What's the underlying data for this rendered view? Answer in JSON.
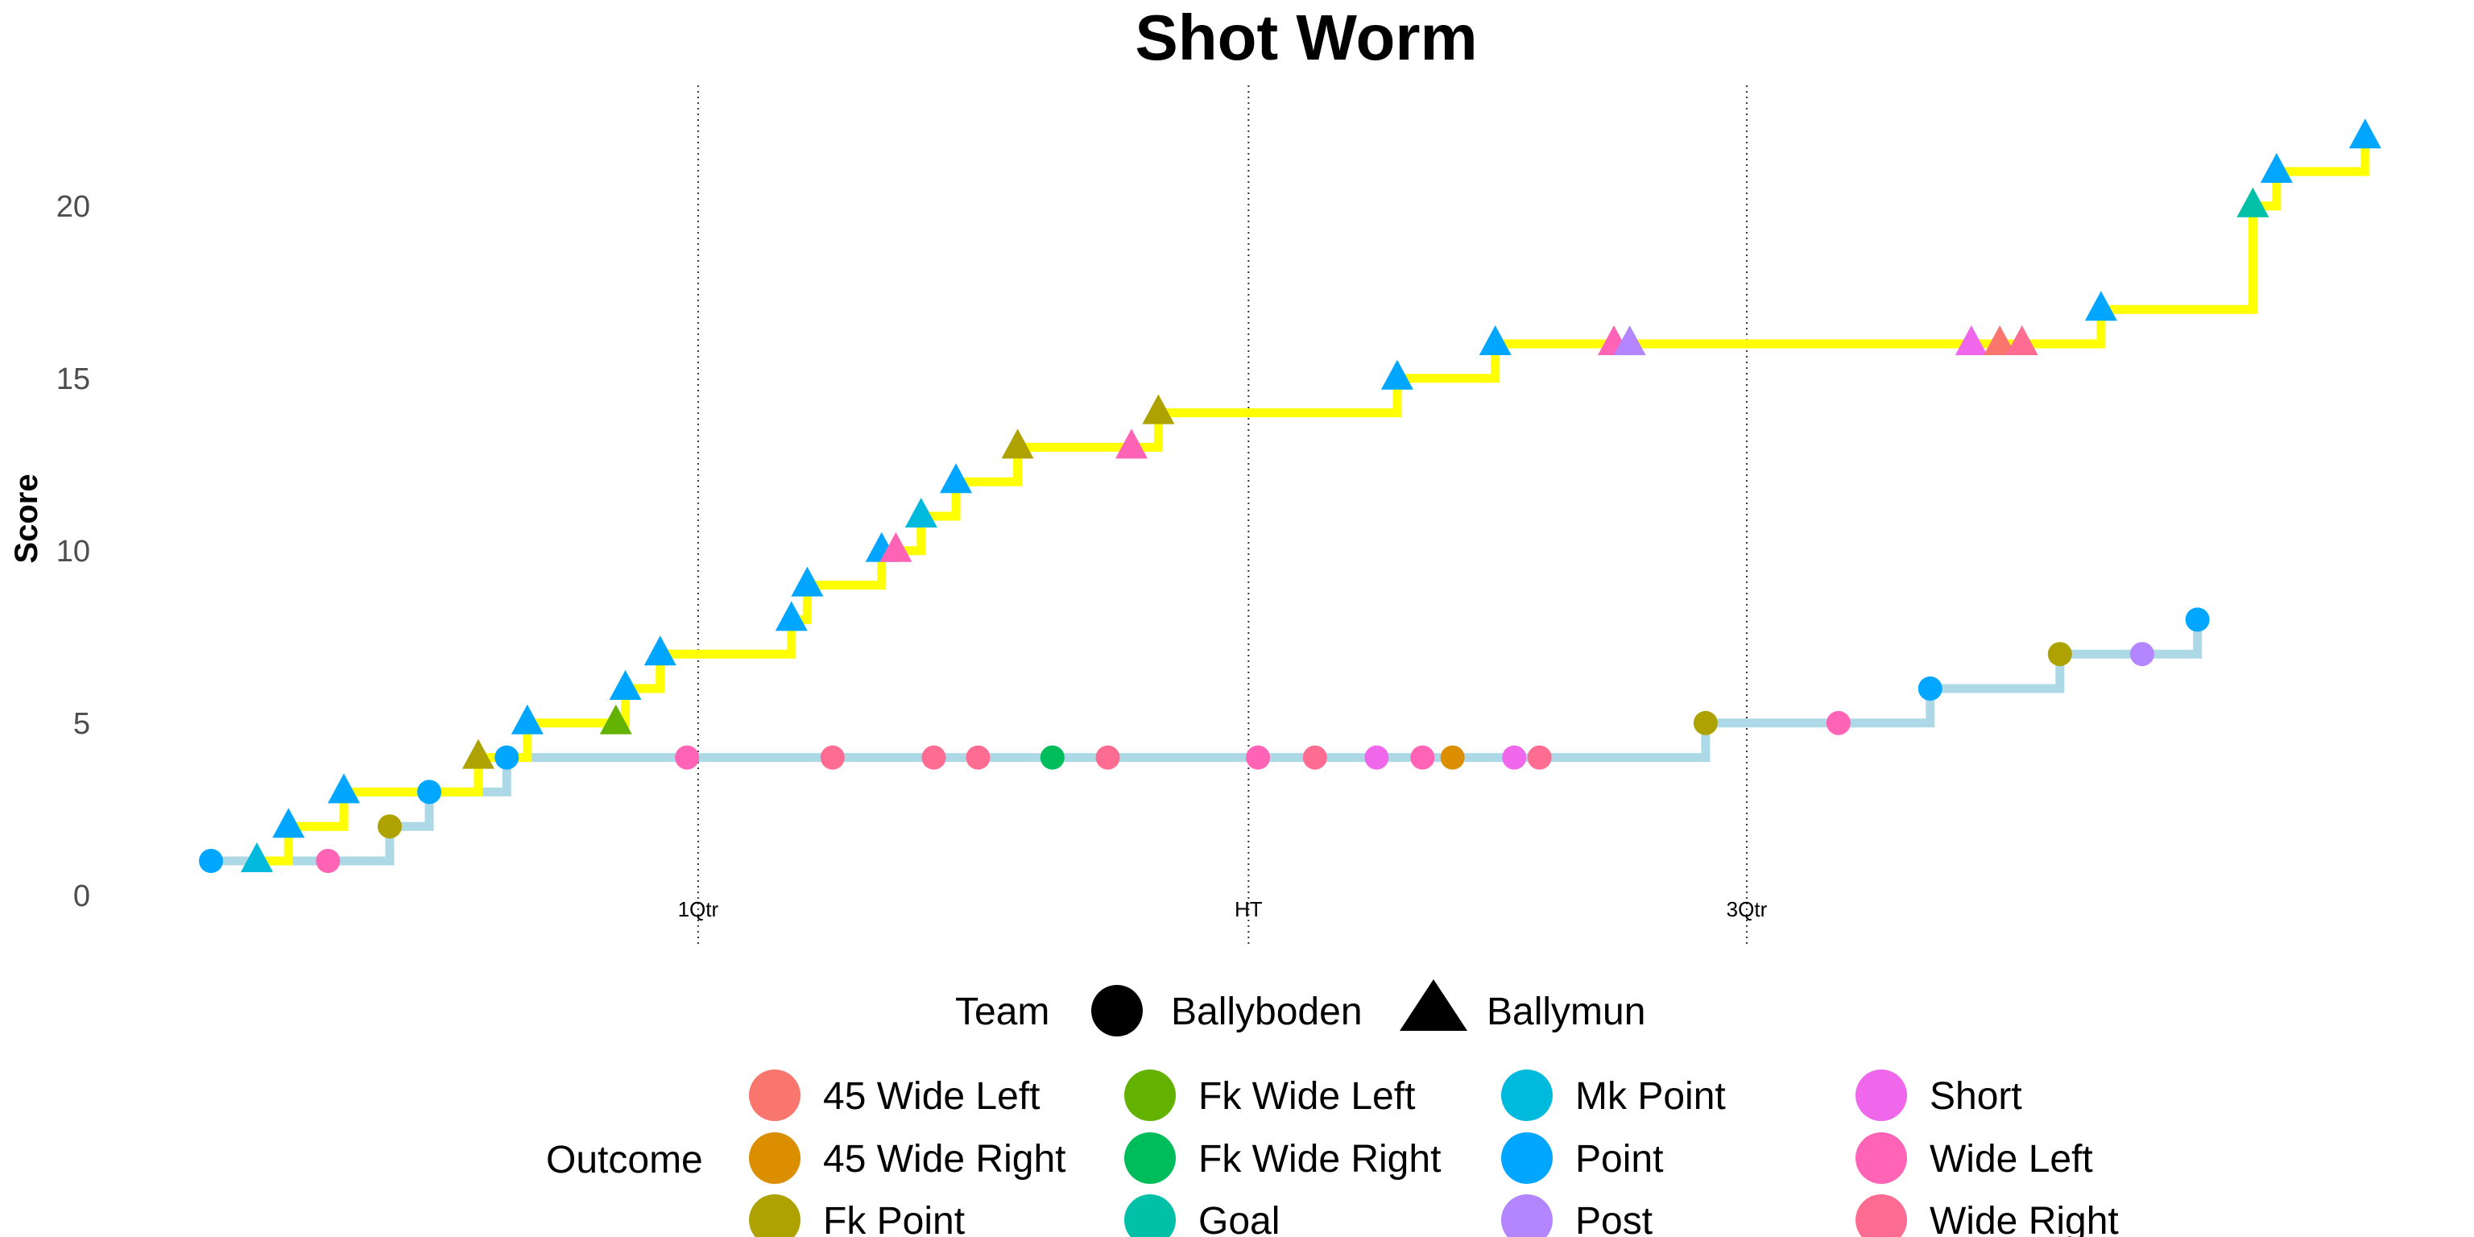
{
  "chart_data": {
    "type": "line",
    "title": "Shot Worm",
    "xlabel": "",
    "ylabel": "Score",
    "xlim": [
      0,
      1385
    ],
    "ylim": [
      -1.5,
      23.5
    ],
    "y_ticks": [
      0,
      5,
      10,
      15,
      20
    ],
    "grid": false,
    "time_markers": [
      {
        "label": "1Qtr",
        "x": 308
      },
      {
        "label": "HT",
        "x": 656
      },
      {
        "label": "3Qtr",
        "x": 971
      }
    ],
    "team_legend_title": "Team",
    "teams": [
      {
        "name": "Ballyboden",
        "shape": "circle",
        "line_color": "#ADD8E6"
      },
      {
        "name": "Ballymun",
        "shape": "triangle",
        "line_color": "#FFFF00"
      }
    ],
    "outcome_legend_title": "Outcome",
    "outcomes": [
      {
        "name": "45 Wide Left",
        "color": "#F8766D"
      },
      {
        "name": "45 Wide Right",
        "color": "#DB8E00"
      },
      {
        "name": "Fk Point",
        "color": "#AEA200"
      },
      {
        "name": "Fk Wide Left",
        "color": "#64B200"
      },
      {
        "name": "Fk Wide Right",
        "color": "#00BD5C"
      },
      {
        "name": "Goal",
        "color": "#00C1A7"
      },
      {
        "name": "Mk Point",
        "color": "#00BADE"
      },
      {
        "name": "Point",
        "color": "#00A6FF"
      },
      {
        "name": "Post",
        "color": "#B385FF"
      },
      {
        "name": "Short",
        "color": "#EF67EB"
      },
      {
        "name": "Wide Left",
        "color": "#FF63B6"
      },
      {
        "name": "Wide Right",
        "color": "#FF6C91"
      }
    ],
    "series": [
      {
        "name": "Ballyboden",
        "points": [
          {
            "x": 0,
            "y": 1,
            "outcome": "Point"
          },
          {
            "x": 74,
            "y": 1,
            "outcome": "Wide Left"
          },
          {
            "x": 113,
            "y": 2,
            "outcome": "Fk Point"
          },
          {
            "x": 138,
            "y": 3,
            "outcome": "Point"
          },
          {
            "x": 187,
            "y": 4,
            "outcome": "Point"
          },
          {
            "x": 301,
            "y": 4,
            "outcome": "Wide Left"
          },
          {
            "x": 393,
            "y": 4,
            "outcome": "Wide Right"
          },
          {
            "x": 457,
            "y": 4,
            "outcome": "Wide Right"
          },
          {
            "x": 485,
            "y": 4,
            "outcome": "Wide Right"
          },
          {
            "x": 532,
            "y": 4,
            "outcome": "Fk Wide Right"
          },
          {
            "x": 567,
            "y": 4,
            "outcome": "Wide Right"
          },
          {
            "x": 662,
            "y": 4,
            "outcome": "Wide Left"
          },
          {
            "x": 698,
            "y": 4,
            "outcome": "Wide Right"
          },
          {
            "x": 737,
            "y": 4,
            "outcome": "Short"
          },
          {
            "x": 766,
            "y": 4,
            "outcome": "Wide Left"
          },
          {
            "x": 785,
            "y": 4,
            "outcome": "45 Wide Right"
          },
          {
            "x": 824,
            "y": 4,
            "outcome": "Short"
          },
          {
            "x": 840,
            "y": 4,
            "outcome": "Wide Right"
          },
          {
            "x": 945,
            "y": 5,
            "outcome": "Fk Point"
          },
          {
            "x": 1029,
            "y": 5,
            "outcome": "Wide Left"
          },
          {
            "x": 1087,
            "y": 6,
            "outcome": "Point"
          },
          {
            "x": 1169,
            "y": 7,
            "outcome": "Fk Point"
          },
          {
            "x": 1221,
            "y": 7,
            "outcome": "Post"
          },
          {
            "x": 1256,
            "y": 8,
            "outcome": "Point"
          }
        ]
      },
      {
        "name": "Ballymun",
        "points": [
          {
            "x": 29,
            "y": 1,
            "outcome": "Mk Point"
          },
          {
            "x": 49,
            "y": 2,
            "outcome": "Point"
          },
          {
            "x": 84,
            "y": 3,
            "outcome": "Point"
          },
          {
            "x": 169,
            "y": 4,
            "outcome": "Fk Point"
          },
          {
            "x": 200,
            "y": 5,
            "outcome": "Point"
          },
          {
            "x": 256,
            "y": 5,
            "outcome": "Fk Wide Left"
          },
          {
            "x": 262,
            "y": 6,
            "outcome": "Point"
          },
          {
            "x": 284,
            "y": 7,
            "outcome": "Point"
          },
          {
            "x": 367,
            "y": 8,
            "outcome": "Point"
          },
          {
            "x": 377,
            "y": 9,
            "outcome": "Point"
          },
          {
            "x": 424,
            "y": 10,
            "outcome": "Point"
          },
          {
            "x": 433,
            "y": 10,
            "outcome": "Wide Left"
          },
          {
            "x": 449,
            "y": 11,
            "outcome": "Mk Point"
          },
          {
            "x": 471,
            "y": 12,
            "outcome": "Point"
          },
          {
            "x": 510,
            "y": 13,
            "outcome": "Fk Point"
          },
          {
            "x": 582,
            "y": 13,
            "outcome": "Wide Left"
          },
          {
            "x": 599,
            "y": 14,
            "outcome": "Fk Point"
          },
          {
            "x": 750,
            "y": 15,
            "outcome": "Point"
          },
          {
            "x": 812,
            "y": 16,
            "outcome": "Point"
          },
          {
            "x": 887,
            "y": 16,
            "outcome": "Wide Left"
          },
          {
            "x": 897,
            "y": 16,
            "outcome": "Post"
          },
          {
            "x": 1113,
            "y": 16,
            "outcome": "Short"
          },
          {
            "x": 1131,
            "y": 16,
            "outcome": "45 Wide Left"
          },
          {
            "x": 1145,
            "y": 16,
            "outcome": "Wide Right"
          },
          {
            "x": 1195,
            "y": 17,
            "outcome": "Point"
          },
          {
            "x": 1291,
            "y": 20,
            "outcome": "Goal"
          },
          {
            "x": 1306,
            "y": 21,
            "outcome": "Point"
          },
          {
            "x": 1362,
            "y": 22,
            "outcome": "Point"
          }
        ]
      }
    ]
  }
}
